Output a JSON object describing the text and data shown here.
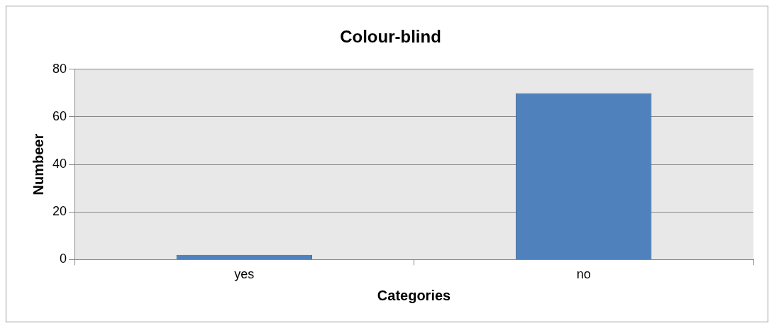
{
  "chart_data": {
    "type": "bar",
    "title": "Colour-blind",
    "xlabel": "Categories",
    "ylabel": "Numbeer",
    "categories": [
      "yes",
      "no"
    ],
    "values": [
      2,
      70
    ],
    "color": "#4f81bd",
    "ylim": [
      0,
      80
    ],
    "yticks": [
      0,
      20,
      40,
      60,
      80
    ],
    "grid": "y",
    "legend": false
  }
}
